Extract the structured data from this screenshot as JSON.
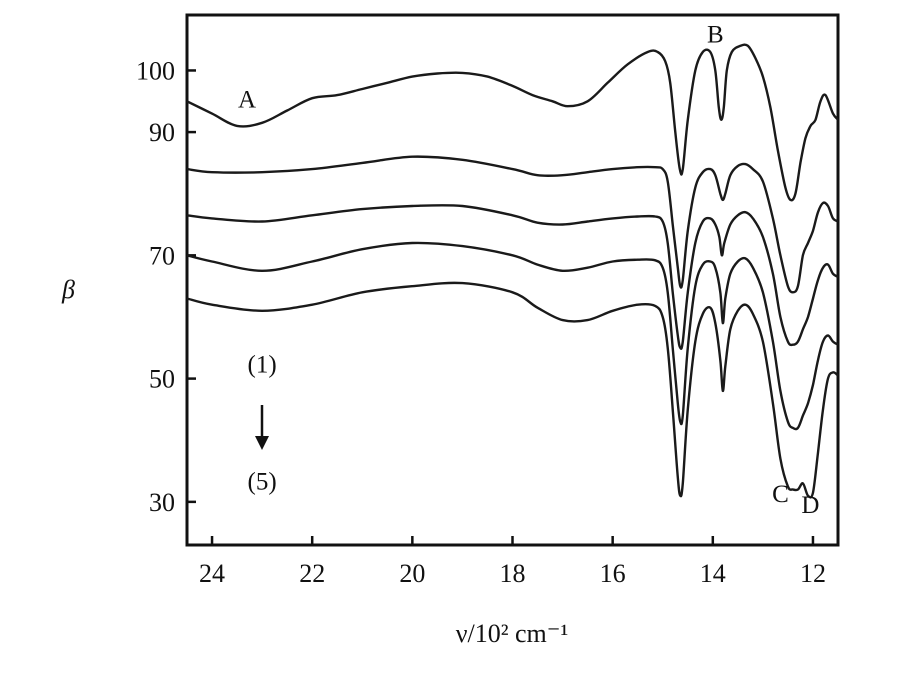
{
  "chart_data": {
    "type": "line",
    "title": "",
    "xlabel": "ν/10² cm⁻¹",
    "ylabel": "β",
    "xlim": [
      24.5,
      11.5
    ],
    "ylim": [
      23,
      109
    ],
    "x_reversed": true,
    "x_ticks": [
      24,
      22,
      20,
      18,
      16,
      14,
      12
    ],
    "y_ticks": [
      100,
      90,
      70,
      50,
      30
    ],
    "grid": false,
    "legend": "none",
    "series": [
      {
        "points": [
          [
            24.5,
            95
          ],
          [
            24,
            93
          ],
          [
            23.5,
            91
          ],
          [
            23,
            91.5
          ],
          [
            22.5,
            93.5
          ],
          [
            22,
            95.5
          ],
          [
            21.5,
            96
          ],
          [
            21,
            97
          ],
          [
            20.5,
            98
          ],
          [
            20,
            99
          ],
          [
            19.5,
            99.5
          ],
          [
            19,
            99.6
          ],
          [
            18.5,
            99
          ],
          [
            18,
            97.5
          ],
          [
            17.6,
            96
          ],
          [
            17.2,
            95
          ],
          [
            16.9,
            94.2
          ],
          [
            16.5,
            95
          ],
          [
            16.1,
            98
          ],
          [
            15.7,
            101
          ],
          [
            15.3,
            103
          ],
          [
            15.1,
            103
          ],
          [
            14.95,
            101.5
          ],
          [
            14.85,
            98
          ],
          [
            14.75,
            90
          ],
          [
            14.66,
            84
          ],
          [
            14.6,
            84
          ],
          [
            14.5,
            92
          ],
          [
            14.35,
            100
          ],
          [
            14.2,
            103
          ],
          [
            14.05,
            103
          ],
          [
            13.95,
            100
          ],
          [
            13.88,
            94
          ],
          [
            13.83,
            92
          ],
          [
            13.78,
            94
          ],
          [
            13.72,
            100
          ],
          [
            13.62,
            103
          ],
          [
            13.45,
            104
          ],
          [
            13.3,
            104
          ],
          [
            13.15,
            102
          ],
          [
            13.0,
            99
          ],
          [
            12.85,
            94
          ],
          [
            12.7,
            87
          ],
          [
            12.55,
            81
          ],
          [
            12.45,
            79
          ],
          [
            12.35,
            80
          ],
          [
            12.25,
            85
          ],
          [
            12.15,
            89
          ],
          [
            12.05,
            91
          ],
          [
            11.95,
            92
          ],
          [
            11.85,
            95
          ],
          [
            11.75,
            96
          ],
          [
            11.6,
            93
          ],
          [
            11.5,
            92
          ]
        ]
      },
      {
        "points": [
          [
            24.5,
            84
          ],
          [
            24,
            83.5
          ],
          [
            23,
            83.5
          ],
          [
            22,
            84
          ],
          [
            21,
            85
          ],
          [
            20,
            86
          ],
          [
            19,
            85.5
          ],
          [
            18,
            84
          ],
          [
            17.5,
            83
          ],
          [
            17,
            83
          ],
          [
            16.5,
            83.5
          ],
          [
            16,
            84
          ],
          [
            15.5,
            84.3
          ],
          [
            15.15,
            84.3
          ],
          [
            15.0,
            84
          ],
          [
            14.9,
            82
          ],
          [
            14.8,
            75
          ],
          [
            14.7,
            68
          ],
          [
            14.65,
            65
          ],
          [
            14.6,
            66
          ],
          [
            14.5,
            74
          ],
          [
            14.35,
            81
          ],
          [
            14.2,
            83.5
          ],
          [
            14.05,
            84
          ],
          [
            13.95,
            83
          ],
          [
            13.85,
            80
          ],
          [
            13.8,
            79
          ],
          [
            13.75,
            80
          ],
          [
            13.65,
            83
          ],
          [
            13.5,
            84.5
          ],
          [
            13.35,
            84.8
          ],
          [
            13.2,
            84
          ],
          [
            13.0,
            82
          ],
          [
            12.8,
            76
          ],
          [
            12.65,
            70
          ],
          [
            12.5,
            65
          ],
          [
            12.4,
            64
          ],
          [
            12.3,
            65
          ],
          [
            12.2,
            70
          ],
          [
            12.1,
            72
          ],
          [
            12.0,
            74
          ],
          [
            11.9,
            77
          ],
          [
            11.8,
            78.5
          ],
          [
            11.7,
            78
          ],
          [
            11.6,
            76
          ],
          [
            11.5,
            75.5
          ]
        ]
      },
      {
        "points": [
          [
            24.5,
            76.5
          ],
          [
            24,
            76
          ],
          [
            23,
            75.5
          ],
          [
            22,
            76.5
          ],
          [
            21,
            77.5
          ],
          [
            20,
            78
          ],
          [
            19,
            78
          ],
          [
            18,
            76.5
          ],
          [
            17.5,
            75.3
          ],
          [
            17,
            75
          ],
          [
            16.5,
            75.5
          ],
          [
            16,
            76
          ],
          [
            15.5,
            76.3
          ],
          [
            15.15,
            76.3
          ],
          [
            15.0,
            75.5
          ],
          [
            14.9,
            72
          ],
          [
            14.8,
            64
          ],
          [
            14.7,
            57
          ],
          [
            14.65,
            55
          ],
          [
            14.6,
            56
          ],
          [
            14.5,
            64
          ],
          [
            14.35,
            72
          ],
          [
            14.2,
            75.5
          ],
          [
            14.05,
            76
          ],
          [
            13.95,
            75
          ],
          [
            13.87,
            73
          ],
          [
            13.82,
            70
          ],
          [
            13.77,
            72
          ],
          [
            13.65,
            75
          ],
          [
            13.5,
            76.5
          ],
          [
            13.35,
            77
          ],
          [
            13.2,
            76
          ],
          [
            13.0,
            73
          ],
          [
            12.8,
            67
          ],
          [
            12.65,
            60
          ],
          [
            12.5,
            56
          ],
          [
            12.4,
            55.5
          ],
          [
            12.3,
            56
          ],
          [
            12.2,
            58
          ],
          [
            12.1,
            60
          ],
          [
            12.0,
            63
          ],
          [
            11.9,
            66
          ],
          [
            11.8,
            68
          ],
          [
            11.7,
            68.5
          ],
          [
            11.6,
            67
          ],
          [
            11.5,
            66.5
          ]
        ]
      },
      {
        "points": [
          [
            24.5,
            70
          ],
          [
            24,
            69
          ],
          [
            23,
            67.5
          ],
          [
            22,
            69
          ],
          [
            21,
            71
          ],
          [
            20,
            72
          ],
          [
            19,
            71.5
          ],
          [
            18,
            70
          ],
          [
            17.5,
            68.5
          ],
          [
            17,
            67.5
          ],
          [
            16.5,
            68
          ],
          [
            16,
            69
          ],
          [
            15.5,
            69.3
          ],
          [
            15.15,
            69.2
          ],
          [
            15.0,
            68
          ],
          [
            14.9,
            64
          ],
          [
            14.8,
            55
          ],
          [
            14.7,
            46
          ],
          [
            14.65,
            43
          ],
          [
            14.6,
            44
          ],
          [
            14.5,
            55
          ],
          [
            14.35,
            65
          ],
          [
            14.2,
            68.5
          ],
          [
            14.05,
            69
          ],
          [
            13.95,
            68
          ],
          [
            13.85,
            64
          ],
          [
            13.8,
            59
          ],
          [
            13.75,
            63
          ],
          [
            13.65,
            67
          ],
          [
            13.5,
            69
          ],
          [
            13.35,
            69.5
          ],
          [
            13.2,
            68
          ],
          [
            13.0,
            64
          ],
          [
            12.8,
            56
          ],
          [
            12.65,
            48
          ],
          [
            12.5,
            43
          ],
          [
            12.4,
            42
          ],
          [
            12.3,
            42
          ],
          [
            12.2,
            44
          ],
          [
            12.1,
            46
          ],
          [
            12.0,
            49
          ],
          [
            11.9,
            53
          ],
          [
            11.8,
            56
          ],
          [
            11.7,
            57
          ],
          [
            11.6,
            56
          ],
          [
            11.5,
            55.5
          ]
        ]
      },
      {
        "points": [
          [
            24.5,
            63
          ],
          [
            24,
            62
          ],
          [
            23,
            61
          ],
          [
            22,
            62
          ],
          [
            21,
            64
          ],
          [
            20,
            65
          ],
          [
            19,
            65.5
          ],
          [
            18,
            64
          ],
          [
            17.5,
            61.5
          ],
          [
            17,
            59.5
          ],
          [
            16.5,
            59.5
          ],
          [
            16,
            61
          ],
          [
            15.5,
            62
          ],
          [
            15.15,
            61.8
          ],
          [
            15.0,
            60
          ],
          [
            14.9,
            55
          ],
          [
            14.8,
            45
          ],
          [
            14.7,
            34
          ],
          [
            14.65,
            31
          ],
          [
            14.6,
            33
          ],
          [
            14.5,
            45
          ],
          [
            14.35,
            56
          ],
          [
            14.2,
            60.5
          ],
          [
            14.05,
            61.5
          ],
          [
            13.95,
            59
          ],
          [
            13.85,
            53
          ],
          [
            13.8,
            48
          ],
          [
            13.75,
            52
          ],
          [
            13.65,
            58
          ],
          [
            13.5,
            61
          ],
          [
            13.35,
            62
          ],
          [
            13.2,
            60.5
          ],
          [
            13.0,
            56
          ],
          [
            12.8,
            46
          ],
          [
            12.65,
            37
          ],
          [
            12.5,
            32.5
          ],
          [
            12.4,
            32
          ],
          [
            12.3,
            32
          ],
          [
            12.2,
            33
          ],
          [
            12.1,
            31
          ],
          [
            12.0,
            31.5
          ],
          [
            11.9,
            38
          ],
          [
            11.8,
            45
          ],
          [
            11.7,
            50
          ],
          [
            11.6,
            51
          ],
          [
            11.5,
            50.5
          ]
        ]
      }
    ],
    "annotations": [
      {
        "text": "A",
        "x": 23.3,
        "y": 94
      },
      {
        "text": "B",
        "x": 13.95,
        "y": 104.5
      },
      {
        "text": "C",
        "x": 12.65,
        "y": 30
      },
      {
        "text": "D",
        "x": 12.05,
        "y": 28.2
      },
      {
        "text": "(1)",
        "x": 23.0,
        "y": 51
      },
      {
        "text": "(5)",
        "x": 23.0,
        "y": 32
      }
    ]
  }
}
